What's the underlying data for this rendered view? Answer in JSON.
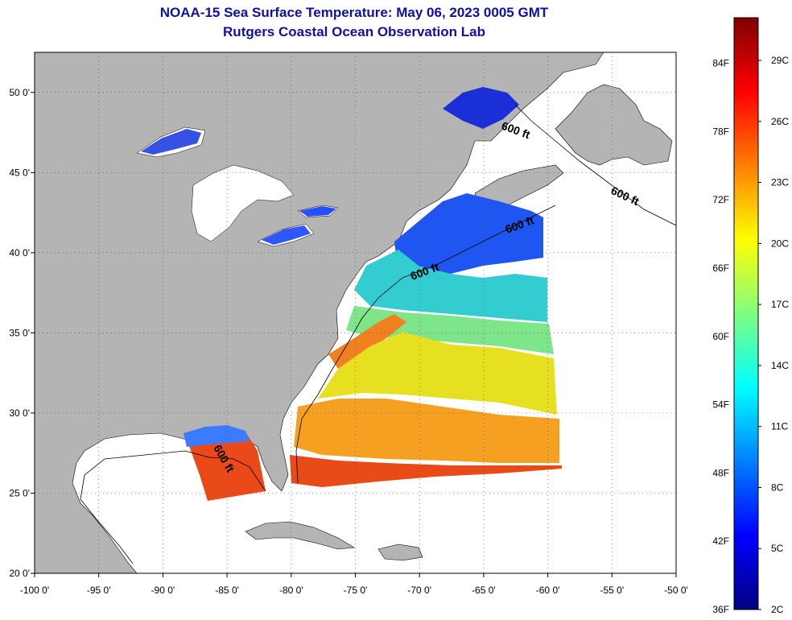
{
  "title": {
    "line1": "NOAA-15 Sea Surface Temperature:  May 06, 2023 0005 GMT",
    "line2": "Rutgers Coastal Ocean Observation Lab"
  },
  "map": {
    "lon_ticks": [
      "-100 0'",
      "-95 0'",
      "-90 0'",
      "-85 0'",
      "-80 0'",
      "-75 0'",
      "-70 0'",
      "-65 0'",
      "-60 0'",
      "-55 0'",
      "-50 0'"
    ],
    "lat_ticks": [
      "50 0'",
      "45 0'",
      "40 0'",
      "35 0'",
      "30 0'",
      "25 0'",
      "20 0'"
    ],
    "isobath_labels": [
      "600 ft",
      "600 ft",
      "600 ft",
      "600 ft",
      "600 ft"
    ],
    "colors": {
      "land": "#b4b4b4",
      "nodata": "#ffffff",
      "grid": "#555555"
    }
  },
  "colorbar": {
    "fahrenheit": [
      "84F",
      "78F",
      "72F",
      "66F",
      "60F",
      "54F",
      "48F",
      "42F",
      "36F"
    ],
    "celsius": [
      "29C",
      "26C",
      "23C",
      "20C",
      "17C",
      "14C",
      "11C",
      "8C",
      "5C",
      "2C"
    ],
    "stops": [
      "#00007f",
      "#0000ff",
      "#007fff",
      "#00ffff",
      "#7fff7f",
      "#ffff00",
      "#ff7f00",
      "#ff0000",
      "#7f0000"
    ]
  }
}
